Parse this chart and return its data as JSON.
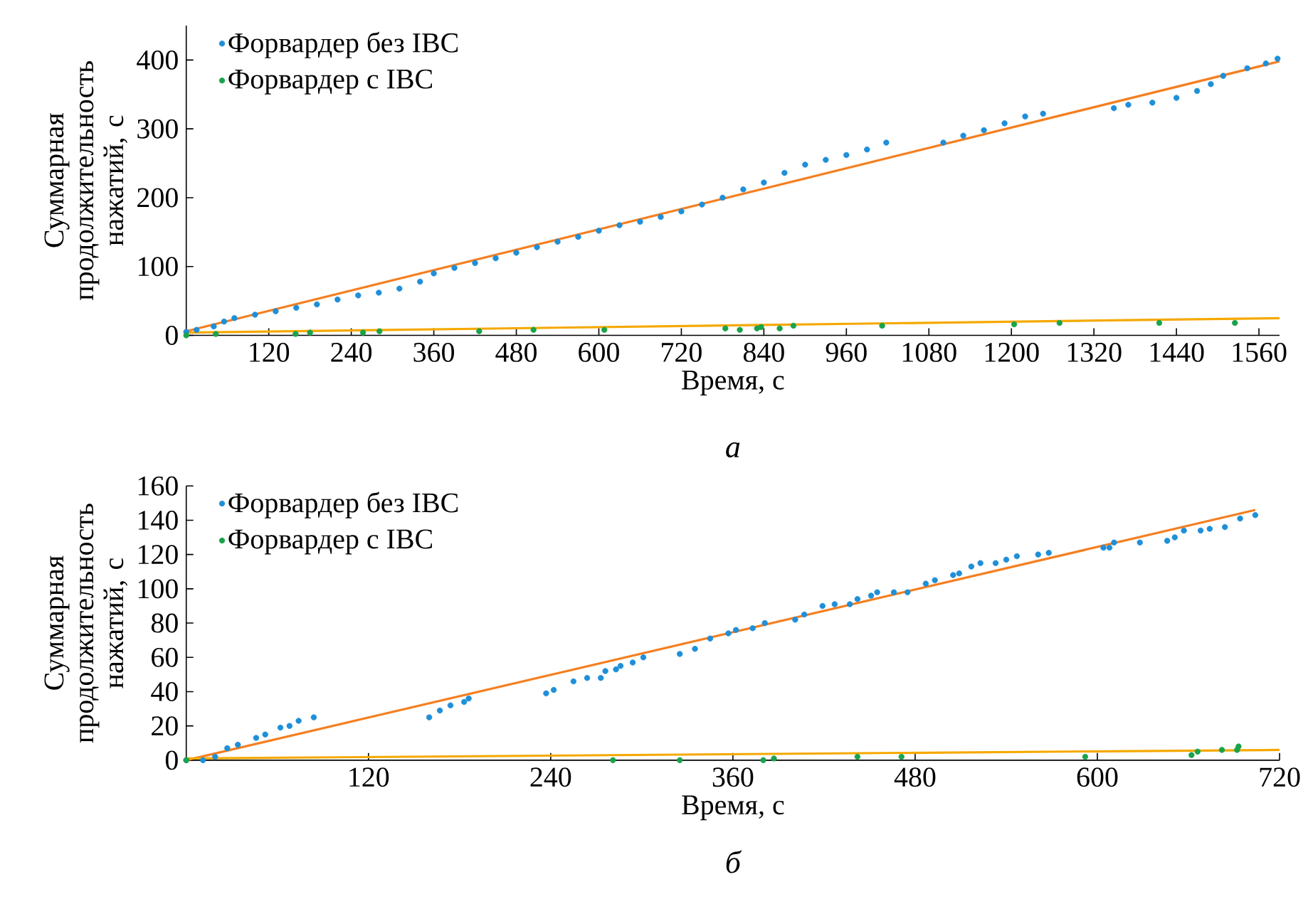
{
  "chart_data": [
    {
      "type": "scatter",
      "xlabel": "Время, с",
      "ylabel": "Суммарная продолжительность нажатий, с",
      "annotations": [
        "а"
      ],
      "xlim": [
        0,
        1590
      ],
      "ylim": [
        0,
        450
      ],
      "xticks": [
        120,
        240,
        360,
        480,
        600,
        720,
        840,
        960,
        1080,
        1200,
        1320,
        1440,
        1560
      ],
      "yticks": [
        0,
        100,
        200,
        300,
        400
      ],
      "legend": "top left",
      "series": [
        {
          "name": "Форвардер без IBC",
          "marker": "circle",
          "color": "#1f8fd8",
          "x": [
            0,
            15,
            40,
            55,
            70,
            100,
            130,
            160,
            190,
            220,
            250,
            280,
            310,
            340,
            360,
            390,
            420,
            450,
            480,
            510,
            540,
            570,
            600,
            630,
            660,
            690,
            720,
            750,
            780,
            810,
            840,
            870,
            900,
            930,
            960,
            990,
            1018,
            1101,
            1130,
            1160,
            1190,
            1220,
            1246,
            1349,
            1370,
            1405,
            1440,
            1470,
            1490,
            1508,
            1543,
            1570,
            1587
          ],
          "values": [
            5,
            8,
            13,
            20,
            25,
            30,
            35,
            40,
            45,
            52,
            58,
            62,
            68,
            78,
            90,
            98,
            105,
            112,
            120,
            128,
            136,
            143,
            152,
            160,
            165,
            172,
            180,
            190,
            200,
            212,
            222,
            236,
            248,
            255,
            262,
            270,
            280,
            280,
            290,
            298,
            308,
            318,
            322,
            330,
            335,
            338,
            345,
            355,
            365,
            377,
            388,
            395,
            402
          ]
        },
        {
          "name": "Форвардер с IBC",
          "marker": "circle",
          "color": "#1aa34a",
          "x": [
            0,
            43,
            159,
            180,
            257,
            281,
            426,
            505,
            608,
            784,
            805,
            830,
            836,
            863,
            883,
            1012,
            1204,
            1270,
            1415,
            1525
          ],
          "values": [
            0,
            2,
            2,
            4,
            4,
            6,
            6,
            8,
            8,
            10,
            8,
            10,
            12,
            10,
            14,
            14,
            16,
            18,
            18,
            18
          ]
        },
        {
          "type": "line",
          "marker": "none",
          "color": "#f57f20",
          "x": [
            0,
            1590
          ],
          "values": [
            6,
            398
          ]
        },
        {
          "type": "line",
          "marker": "none",
          "color": "#f5a800",
          "x": [
            0,
            1590
          ],
          "values": [
            4,
            25
          ]
        }
      ]
    },
    {
      "type": "scatter",
      "xlabel": "Время, с",
      "ylabel": "Суммарная продолжительность нажатий, с",
      "annotations": [
        "б"
      ],
      "xlim": [
        0,
        720
      ],
      "ylim": [
        0,
        160
      ],
      "xticks": [
        120,
        240,
        360,
        480,
        600,
        720
      ],
      "yticks": [
        0,
        20,
        40,
        60,
        80,
        100,
        120,
        140,
        160
      ],
      "legend": "top left",
      "series": [
        {
          "name": "Форвардер без IBC",
          "marker": "circle",
          "color": "#1f8fd8",
          "x": [
            0,
            11,
            19,
            27,
            34,
            46,
            52,
            62,
            68,
            74,
            84,
            160,
            167,
            174,
            183,
            186,
            237,
            242,
            255,
            264,
            273,
            276,
            283,
            286,
            294,
            301,
            325,
            335,
            345,
            357,
            362,
            373,
            381,
            401,
            407,
            419,
            427,
            437,
            442,
            451,
            455,
            466,
            475,
            487,
            493,
            505,
            509,
            517,
            523,
            533,
            540,
            547,
            561,
            568,
            604,
            608,
            611,
            628,
            646,
            651,
            657,
            668,
            674,
            684,
            694,
            704
          ],
          "values": [
            0,
            0,
            2,
            7,
            9,
            13,
            15,
            19,
            20,
            23,
            25,
            25,
            29,
            32,
            34,
            36,
            39,
            41,
            46,
            48,
            48,
            52,
            53,
            55,
            57,
            60,
            62,
            65,
            71,
            74,
            76,
            77,
            80,
            82,
            85,
            90,
            91,
            91,
            94,
            96,
            98,
            98,
            98,
            103,
            105,
            108,
            109,
            113,
            115,
            115,
            117,
            119,
            120,
            121,
            124,
            124,
            127,
            127,
            128,
            130,
            134,
            134,
            135,
            136,
            141,
            143
          ]
        },
        {
          "name": "Форвардер с IBC",
          "marker": "circle",
          "color": "#1aa34a",
          "x": [
            0,
            281,
            325,
            380,
            387,
            442,
            471,
            592,
            662,
            666,
            682,
            692,
            693
          ],
          "values": [
            0,
            0,
            0,
            0,
            1,
            2,
            2,
            2,
            3,
            5,
            6,
            6,
            8
          ]
        },
        {
          "type": "line",
          "marker": "none",
          "color": "#f57f20",
          "x": [
            0,
            704
          ],
          "values": [
            0,
            146
          ]
        },
        {
          "type": "line",
          "marker": "none",
          "color": "#f5a800",
          "x": [
            0,
            720
          ],
          "values": [
            1,
            6
          ]
        }
      ]
    }
  ]
}
